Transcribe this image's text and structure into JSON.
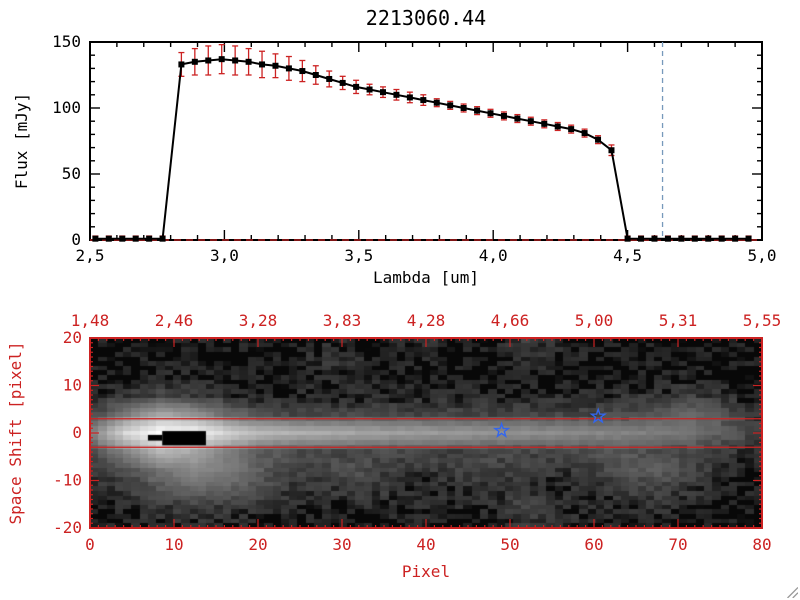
{
  "window": {
    "background": "#ffffff"
  },
  "chart_data": [
    {
      "type": "line",
      "title": "2213060.44",
      "xlabel": "Lambda [um]",
      "ylabel": "Flux [mJy]",
      "xlim": [
        2.5,
        5.0
      ],
      "ylim": [
        0,
        150
      ],
      "x_ticks": [
        "2,5",
        "3,0",
        "3,5",
        "4,0",
        "4,5",
        "5,0"
      ],
      "x_tick_values": [
        2.5,
        3.0,
        3.5,
        4.0,
        4.5,
        5.0
      ],
      "y_ticks": [
        "0",
        "50",
        "100",
        "150"
      ],
      "y_tick_values": [
        0,
        50,
        100,
        150
      ],
      "axis_color": "#000000",
      "error_color": "#cc2222",
      "zero_line": {
        "y": 0,
        "color": "#cc2222",
        "style": "dashed"
      },
      "vline": {
        "x": 4.63,
        "color": "#7799bb",
        "style": "dashed"
      },
      "series": [
        {
          "name": "flux",
          "color": "#000000",
          "marker": "square",
          "x": [
            2.52,
            2.57,
            2.62,
            2.67,
            2.72,
            2.77,
            2.84,
            2.89,
            2.94,
            2.99,
            3.04,
            3.09,
            3.14,
            3.19,
            3.24,
            3.29,
            3.34,
            3.39,
            3.44,
            3.49,
            3.54,
            3.59,
            3.64,
            3.69,
            3.74,
            3.79,
            3.84,
            3.89,
            3.94,
            3.99,
            4.04,
            4.09,
            4.14,
            4.19,
            4.24,
            4.29,
            4.34,
            4.39,
            4.44,
            4.5,
            4.55,
            4.6,
            4.65,
            4.7,
            4.75,
            4.8,
            4.85,
            4.9,
            4.95
          ],
          "y": [
            1,
            1,
            1,
            1,
            1,
            1,
            133,
            135,
            136,
            137,
            136,
            135,
            133,
            132,
            130,
            128,
            125,
            122,
            119,
            116,
            114,
            112,
            110,
            108,
            106,
            104,
            102,
            100,
            98,
            96,
            94,
            92,
            90,
            88,
            86,
            84,
            81,
            76,
            68,
            1,
            1,
            1,
            1,
            1,
            1,
            1,
            1,
            1,
            1
          ],
          "yerr": [
            2,
            2,
            2,
            2,
            2,
            2,
            9,
            10,
            11,
            11,
            11,
            10,
            10,
            9,
            9,
            8,
            7,
            6,
            5,
            5,
            4,
            4,
            4,
            4,
            4,
            3,
            3,
            3,
            3,
            3,
            3,
            3,
            3,
            3,
            3,
            3,
            3,
            3,
            4,
            2,
            2,
            2,
            2,
            2,
            2,
            2,
            2,
            2,
            2
          ]
        }
      ]
    },
    {
      "type": "heatmap",
      "xlabel": "Pixel",
      "ylabel": "Space Shift [pixel]",
      "axis_color": "#cc2222",
      "xlim": [
        0,
        80
      ],
      "ylim": [
        -20,
        20
      ],
      "x_ticks": [
        "0",
        "10",
        "20",
        "30",
        "40",
        "50",
        "60",
        "70",
        "80"
      ],
      "x_tick_values": [
        0,
        10,
        20,
        30,
        40,
        50,
        60,
        70,
        80
      ],
      "y_ticks": [
        "-20",
        "-10",
        "0",
        "10",
        "20"
      ],
      "y_tick_values": [
        -20,
        -10,
        0,
        10,
        20
      ],
      "top_axis_ticks": [
        "1,48",
        "2,46",
        "3,28",
        "3,83",
        "4,28",
        "4,66",
        "5,00",
        "5,31",
        "5,55"
      ],
      "aperture_lines_y": [
        3,
        -3
      ],
      "stars": [
        {
          "x": 49,
          "y": 0.5
        },
        {
          "x": 60.5,
          "y": 3.5
        }
      ],
      "star_color": "#3366ee",
      "mask_rects": [
        {
          "x0": 6.9,
          "x1": 8.6,
          "y0": -0.4,
          "y1": -1.6
        },
        {
          "x0": 8.6,
          "x1": 13.8,
          "y0": 0.4,
          "y1": -2.6
        }
      ],
      "intensity_grid": {
        "comment": "relative intensity 0-100, rows top (y=+20) to bottom (y=-20), cols x=0..80 step 4",
        "cols": 21,
        "rows": 11,
        "x_range": [
          0,
          80
        ],
        "y_range": [
          20,
          -20
        ],
        "values": [
          [
            0,
            0,
            0,
            0,
            0,
            0,
            0,
            2,
            0,
            0,
            3,
            0,
            0,
            6,
            2,
            0,
            0,
            0,
            0,
            0,
            0
          ],
          [
            0,
            0,
            0,
            0,
            0,
            0,
            0,
            4,
            2,
            0,
            2,
            0,
            0,
            4,
            2,
            0,
            0,
            0,
            0,
            0,
            0
          ],
          [
            0,
            0,
            2,
            2,
            0,
            0,
            0,
            2,
            2,
            0,
            0,
            0,
            0,
            0,
            0,
            0,
            0,
            0,
            2,
            0,
            0
          ],
          [
            2,
            4,
            8,
            6,
            3,
            2,
            2,
            2,
            2,
            2,
            2,
            2,
            2,
            2,
            2,
            2,
            3,
            4,
            6,
            3,
            0
          ],
          [
            8,
            25,
            45,
            35,
            18,
            10,
            8,
            8,
            8,
            8,
            8,
            8,
            8,
            8,
            8,
            8,
            9,
            14,
            18,
            10,
            4
          ],
          [
            30,
            75,
            100,
            96,
            70,
            55,
            50,
            47,
            44,
            42,
            40,
            38,
            36,
            34,
            32,
            30,
            28,
            26,
            22,
            14,
            8
          ],
          [
            10,
            30,
            55,
            45,
            25,
            14,
            10,
            9,
            9,
            8,
            8,
            8,
            8,
            8,
            9,
            10,
            12,
            10,
            8,
            5,
            2
          ],
          [
            4,
            10,
            22,
            30,
            26,
            14,
            6,
            8,
            10,
            6,
            4,
            6,
            8,
            6,
            4,
            6,
            12,
            14,
            8,
            3,
            0
          ],
          [
            2,
            5,
            12,
            18,
            16,
            10,
            4,
            4,
            6,
            4,
            2,
            3,
            4,
            4,
            2,
            3,
            6,
            7,
            4,
            2,
            0
          ],
          [
            0,
            2,
            4,
            6,
            5,
            3,
            2,
            2,
            2,
            2,
            2,
            2,
            2,
            8,
            4,
            2,
            2,
            3,
            2,
            0,
            0
          ],
          [
            0,
            0,
            2,
            2,
            2,
            0,
            0,
            0,
            0,
            0,
            0,
            0,
            0,
            5,
            2,
            0,
            0,
            0,
            0,
            0,
            0
          ]
        ]
      }
    }
  ]
}
